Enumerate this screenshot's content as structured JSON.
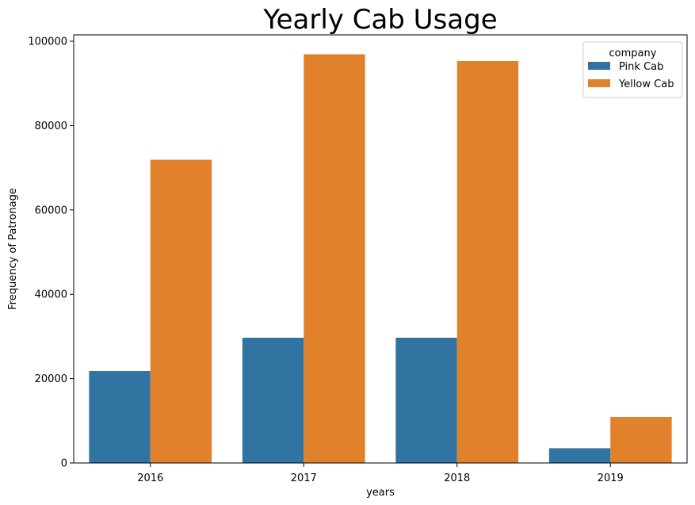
{
  "chart_data": {
    "type": "bar",
    "title": "Yearly Cab Usage",
    "xlabel": "years",
    "ylabel": "Frequency of Patronage",
    "categories": [
      "2016",
      "2017",
      "2018",
      "2019"
    ],
    "series": [
      {
        "name": "Pink Cab",
        "color": "#3274a1",
        "values": [
          21800,
          29700,
          29700,
          3500
        ]
      },
      {
        "name": "Yellow Cab",
        "color": "#e1812c",
        "values": [
          71900,
          96900,
          95300,
          10900
        ]
      }
    ],
    "ylim": [
      0,
      101500
    ],
    "yticks": [
      0,
      20000,
      40000,
      60000,
      80000,
      100000
    ],
    "ytick_labels": [
      "0",
      "20000",
      "40000",
      "60000",
      "80000",
      "100000"
    ],
    "grid": false,
    "legend": {
      "title": "company",
      "position": "top-right"
    }
  }
}
